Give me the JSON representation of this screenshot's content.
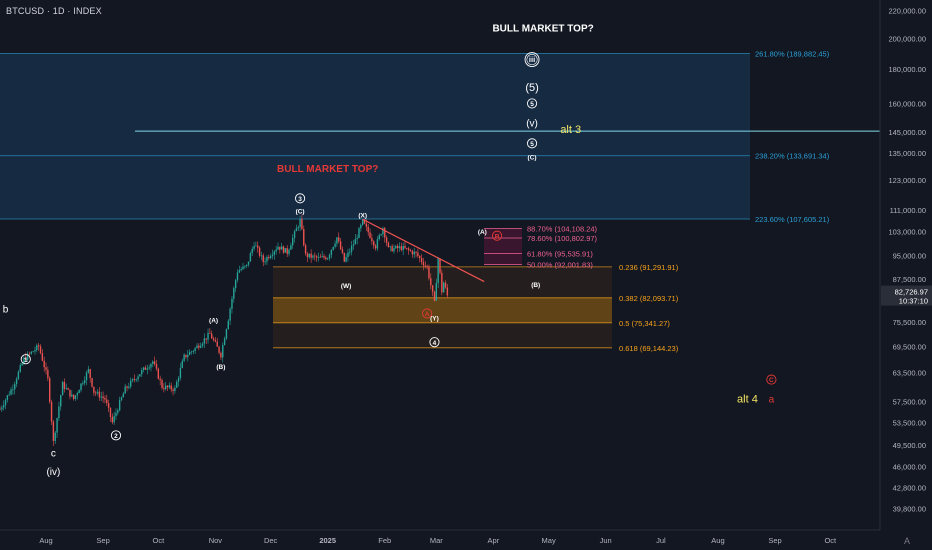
{
  "header": {
    "symbol_line": "BTCUSD · 1D · INDEX"
  },
  "corner_logo": "A",
  "chart_data": {
    "type": "candlestick",
    "symbol": "BTCUSD",
    "interval": "1D",
    "exchange": "INDEX",
    "y_scale": "log",
    "ylim": [
      37000,
      222000
    ],
    "x_range": [
      "2024-07-07",
      "2025-10-28"
    ],
    "last_price": "82,726.97",
    "countdown": "10:37:10",
    "colors": {
      "background": "#131722",
      "up": "#26a69a",
      "down": "#ef5350",
      "fib_ext": "#2a9fd6",
      "fib_ret": "#f7a21b",
      "fib_red": "#f06292",
      "trendline": "#ef5350",
      "alt_yellow": "#f5e663",
      "alt_red": "#e53935",
      "white": "#ffffff",
      "axis_text": "#b2b5be",
      "price_tag": "#2a2e39"
    },
    "y_ticks": [
      "220,000.00",
      "200,000.00",
      "180,000.00",
      "160,000.00",
      "145,000.00",
      "135,000.00",
      "123,000.00",
      "111,000.00",
      "103,000.00",
      "95,000.00",
      "87,500.00",
      "75,500.00",
      "69,500.00",
      "63,500.00",
      "57,500.00",
      "53,500.00",
      "49,500.00",
      "46,000.00",
      "42,800.00",
      "39,800.00"
    ],
    "x_ticks": [
      "Aug",
      "Sep",
      "Oct",
      "Nov",
      "Dec",
      "2025",
      "Feb",
      "Mar",
      "Apr",
      "May",
      "Jun",
      "Jul",
      "Aug",
      "Sep",
      "Oct"
    ],
    "price_path": [
      [
        "2024-07-07",
        56000
      ],
      [
        "2024-07-14",
        60500
      ],
      [
        "2024-07-20",
        66500
      ],
      [
        "2024-07-28",
        69500
      ],
      [
        "2024-08-02",
        62000
      ],
      [
        "2024-08-05",
        50000
      ],
      [
        "2024-08-10",
        61000
      ],
      [
        "2024-08-16",
        58000
      ],
      [
        "2024-08-24",
        64000
      ],
      [
        "2024-08-27",
        59500
      ],
      [
        "2024-09-02",
        58000
      ],
      [
        "2024-09-06",
        53500
      ],
      [
        "2024-09-13",
        60000
      ],
      [
        "2024-09-20",
        63000
      ],
      [
        "2024-09-28",
        66000
      ],
      [
        "2024-10-03",
        60500
      ],
      [
        "2024-10-10",
        60000
      ],
      [
        "2024-10-15",
        67000
      ],
      [
        "2024-10-21",
        69000
      ],
      [
        "2024-10-29",
        72500
      ],
      [
        "2024-11-04",
        67500
      ],
      [
        "2024-11-08",
        76500
      ],
      [
        "2024-11-13",
        90000
      ],
      [
        "2024-11-18",
        91500
      ],
      [
        "2024-11-22",
        99000
      ],
      [
        "2024-11-27",
        93000
      ],
      [
        "2024-12-05",
        98000
      ],
      [
        "2024-12-10",
        96000
      ],
      [
        "2024-12-17",
        107000
      ],
      [
        "2024-12-20",
        95000
      ],
      [
        "2024-12-27",
        94000
      ],
      [
        "2025-01-01",
        94500
      ],
      [
        "2025-01-06",
        101000
      ],
      [
        "2025-01-10",
        93000
      ],
      [
        "2025-01-16",
        100000
      ],
      [
        "2025-01-20",
        106500
      ],
      [
        "2025-01-27",
        98000
      ],
      [
        "2025-01-31",
        104500
      ],
      [
        "2025-02-03",
        97000
      ],
      [
        "2025-02-10",
        97500
      ],
      [
        "2025-02-18",
        95500
      ],
      [
        "2025-02-24",
        91000
      ],
      [
        "2025-02-28",
        80500
      ],
      [
        "2025-03-02",
        94000
      ],
      [
        "2025-03-04",
        84000
      ],
      [
        "2025-03-05",
        86500
      ],
      [
        "2025-03-07",
        82700
      ]
    ],
    "fib_extensions": [
      {
        "label": "261.80% (189,882.45)",
        "price": 189882
      },
      {
        "label": "238.20% (133,691.34)",
        "price": 133691
      },
      {
        "label": "223.60% (107,605.21)",
        "price": 107605
      }
    ],
    "fib_retracements": [
      {
        "label": "0.236 (91,291.91)",
        "price": 91292
      },
      {
        "label": "0.382 (82,093.71)",
        "price": 82094
      },
      {
        "label": "0.5 (75,341.27)",
        "price": 75341
      },
      {
        "label": "0.618 (69,144.23)",
        "price": 69144
      }
    ],
    "fib_red_levels": [
      {
        "label": "88.70% (104,108.24)",
        "price": 104108
      },
      {
        "label": "78.60% (100,802.97)",
        "price": 100803
      },
      {
        "label": "61.80% (95,535.91)",
        "price": 95536
      },
      {
        "label": "50.00% (92,001.83)",
        "price": 92002
      }
    ],
    "horizontal_line": 145500,
    "trendline": [
      [
        "2025-01-20",
        107500
      ],
      [
        "2025-03-27",
        86800
      ]
    ],
    "annotations": [
      {
        "text": "BULL MARKET TOP?",
        "date": "2025-04-28",
        "price": 207000,
        "color": "white",
        "style": "title"
      },
      {
        "text": "BULL MARKET TOP?",
        "date": "2025-01-01",
        "price": 128000,
        "color": "red",
        "style": "title"
      },
      {
        "text": "iii",
        "date": "2025-04-22",
        "price": 186000,
        "color": "white",
        "style": "circled_double"
      },
      {
        "text": "(5)",
        "date": "2025-04-22",
        "price": 169000,
        "color": "white",
        "style": "large"
      },
      {
        "text": "5",
        "date": "2025-04-22",
        "price": 160000,
        "color": "white",
        "style": "circled"
      },
      {
        "text": "(v)",
        "date": "2025-04-22",
        "price": 149500,
        "color": "white",
        "style": "plain"
      },
      {
        "text": "5",
        "date": "2025-04-22",
        "price": 139500,
        "color": "white",
        "style": "circled"
      },
      {
        "text": "(C)",
        "date": "2025-04-22",
        "price": 133000,
        "color": "white",
        "style": "small"
      },
      {
        "text": "alt 3",
        "date": "2025-05-13",
        "price": 146500,
        "color": "yellow",
        "style": "alt"
      },
      {
        "text": "3",
        "date": "2024-12-17",
        "price": 115500,
        "color": "white",
        "style": "circled"
      },
      {
        "text": "(C)",
        "date": "2024-12-17",
        "price": 110500,
        "color": "white",
        "style": "small"
      },
      {
        "text": "(X)",
        "date": "2025-01-20",
        "price": 109000,
        "color": "white",
        "style": "small"
      },
      {
        "text": "(W)",
        "date": "2025-01-11",
        "price": 85500,
        "color": "white",
        "style": "small"
      },
      {
        "text": "(Y)",
        "date": "2025-02-28",
        "price": 76500,
        "color": "white",
        "style": "small"
      },
      {
        "text": "4",
        "date": "2025-02-28",
        "price": 70500,
        "color": "white",
        "style": "circled"
      },
      {
        "text": "A",
        "date": "2025-02-24",
        "price": 77800,
        "color": "red",
        "style": "circled"
      },
      {
        "text": "(A)",
        "date": "2025-03-26",
        "price": 103000,
        "color": "white",
        "style": "small"
      },
      {
        "text": "B",
        "date": "2025-04-03",
        "price": 101600,
        "color": "red",
        "style": "circled"
      },
      {
        "text": "(B)",
        "date": "2025-04-24",
        "price": 85800,
        "color": "white",
        "style": "small"
      },
      {
        "text": "(A)",
        "date": "2024-10-31",
        "price": 76000,
        "color": "white",
        "style": "small"
      },
      {
        "text": "(B)",
        "date": "2024-11-04",
        "price": 64800,
        "color": "white",
        "style": "small"
      },
      {
        "text": "1",
        "date": "2024-07-21",
        "price": 66500,
        "color": "white",
        "style": "circled"
      },
      {
        "text": "2",
        "date": "2024-09-08",
        "price": 51200,
        "color": "white",
        "style": "circled"
      },
      {
        "text": "b",
        "date": "2024-07-10",
        "price": 79000,
        "color": "white",
        "style": "plain"
      },
      {
        "text": "c",
        "date": "2024-08-05",
        "price": 48200,
        "color": "white",
        "style": "plain"
      },
      {
        "text": "(iv)",
        "date": "2024-08-05",
        "price": 45200,
        "color": "white",
        "style": "plain"
      },
      {
        "text": "C",
        "date": "2025-08-30",
        "price": 62000,
        "color": "red",
        "style": "circled"
      },
      {
        "text": "alt 4",
        "date": "2025-08-17",
        "price": 58000,
        "color": "yellow",
        "style": "alt"
      },
      {
        "text": "a",
        "date": "2025-08-30",
        "price": 58000,
        "color": "red",
        "style": "plain"
      }
    ]
  }
}
